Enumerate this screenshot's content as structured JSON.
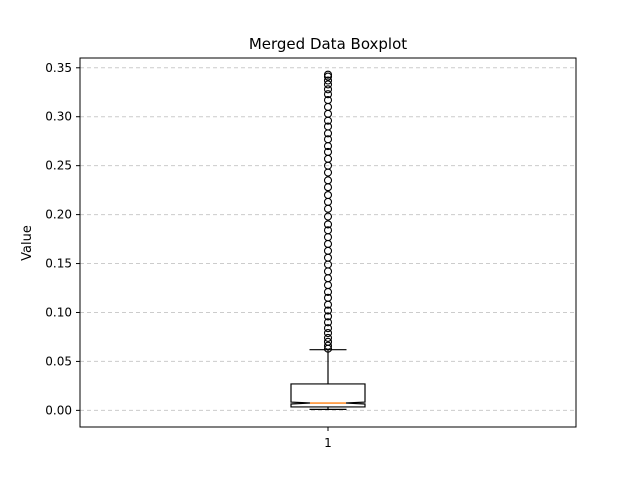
{
  "chart_data": {
    "type": "boxplot",
    "title": "Merged Data Boxplot",
    "xlabel": "",
    "ylabel": "Value",
    "ylim": [
      -0.017,
      0.36
    ],
    "yticks": [
      0.0,
      0.05,
      0.1,
      0.15,
      0.2,
      0.25,
      0.3,
      0.35
    ],
    "ytick_labels": [
      "0.00",
      "0.05",
      "0.10",
      "0.15",
      "0.20",
      "0.25",
      "0.30",
      "0.35"
    ],
    "categories": [
      "1"
    ],
    "grid": "y-dashed",
    "notched": true,
    "series": [
      {
        "whisker_low": 0.001,
        "q1": 0.0035,
        "median": 0.0075,
        "q3": 0.027,
        "whisker_high": 0.062,
        "notch_low": 0.0065,
        "notch_high": 0.0085,
        "outliers": [
          0.063,
          0.066,
          0.07,
          0.074,
          0.079,
          0.084,
          0.09,
          0.096,
          0.102,
          0.108,
          0.115,
          0.121,
          0.128,
          0.135,
          0.142,
          0.149,
          0.156,
          0.163,
          0.17,
          0.177,
          0.184,
          0.19,
          0.198,
          0.206,
          0.213,
          0.22,
          0.228,
          0.235,
          0.243,
          0.25,
          0.257,
          0.264,
          0.27,
          0.277,
          0.283,
          0.29,
          0.296,
          0.303,
          0.31,
          0.317,
          0.323,
          0.328,
          0.333,
          0.337,
          0.341,
          0.343
        ]
      }
    ]
  },
  "colors": {
    "median": "#ff7f0e",
    "grid": "#cccccc",
    "box": "#000000"
  }
}
